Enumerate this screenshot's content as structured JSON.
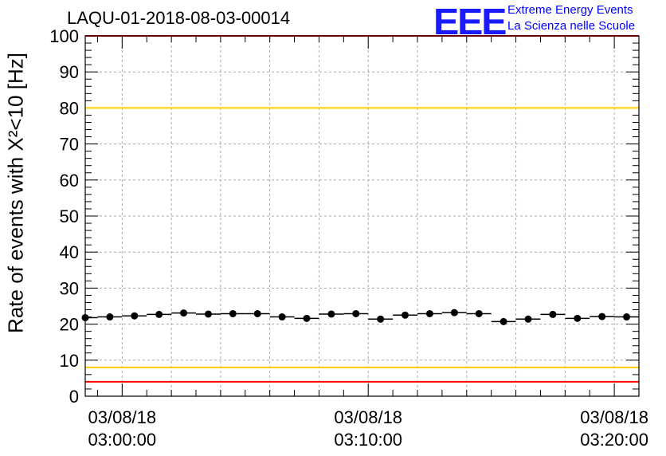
{
  "chart_title": "LAQU-01-2018-08-03-00014",
  "logo": {
    "mark": "EEE",
    "line1": "Extreme Energy Events",
    "line2": "La Scienza nelle Scuole"
  },
  "chart_data": {
    "type": "scatter",
    "title": "LAQU-01-2018-08-03-00014",
    "ylabel": "Rate of events with X²<10 [Hz]",
    "xlabel": "",
    "ylim": [
      0,
      100
    ],
    "yticks": [
      0,
      10,
      20,
      30,
      40,
      50,
      60,
      70,
      80,
      90,
      100
    ],
    "xlim": [
      "2018-08-03 02:58:30",
      "2018-08-03 03:21:00"
    ],
    "xticks": [
      {
        "date": "03/08/18",
        "time": "03:00:00"
      },
      {
        "date": "03/08/18",
        "time": "03:10:00"
      },
      {
        "date": "03/08/18",
        "time": "03:20:00"
      }
    ],
    "grid": true,
    "reference_lines": [
      {
        "y": 100,
        "color": "#ff0000"
      },
      {
        "y": 80,
        "color": "#ffcc00"
      },
      {
        "y": 8,
        "color": "#ffcc00"
      },
      {
        "y": 4,
        "color": "#ff0000"
      }
    ],
    "bin_width_minutes": 1,
    "series": [
      {
        "x": [
          "02:58:30",
          "02:59:30",
          "03:00:30",
          "03:01:30",
          "03:02:30",
          "03:03:30",
          "03:04:30",
          "03:05:30",
          "03:06:30",
          "03:07:30",
          "03:08:30",
          "03:09:30",
          "03:10:30",
          "03:11:30",
          "03:12:30",
          "03:13:30",
          "03:14:30",
          "03:15:30",
          "03:16:30",
          "03:17:30",
          "03:18:30",
          "03:19:30",
          "03:20:30"
        ],
        "values": [
          21.8,
          22.0,
          22.3,
          22.7,
          23.1,
          22.8,
          22.9,
          22.9,
          22.0,
          21.6,
          22.8,
          22.9,
          21.4,
          22.5,
          22.9,
          23.2,
          22.9,
          20.7,
          21.4,
          22.7,
          21.6,
          22.1,
          22.0
        ],
        "color": "#000000"
      }
    ]
  }
}
